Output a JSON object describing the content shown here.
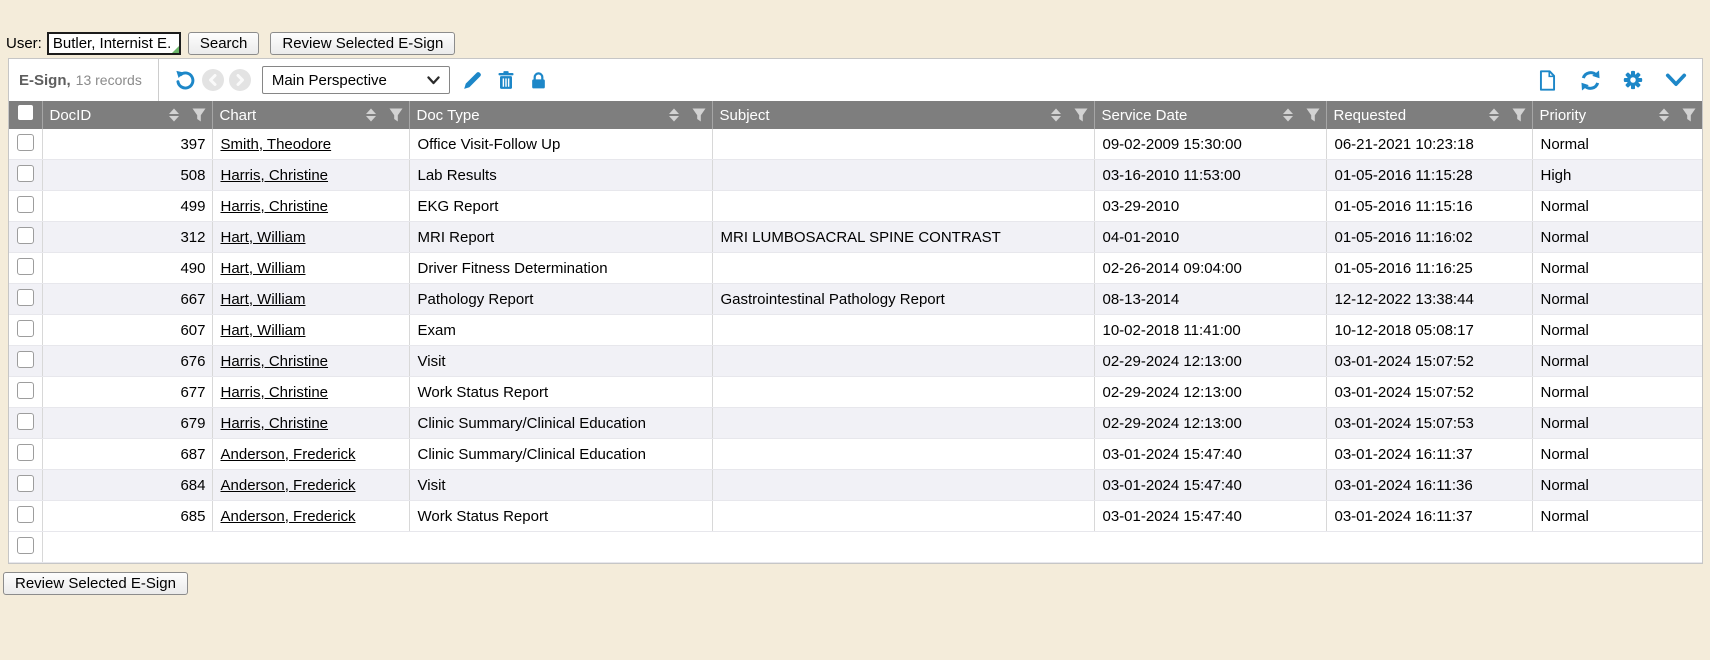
{
  "colors": {
    "accent_blue": "#1d87c8",
    "header_bg": "#7e7e7e",
    "alt_row_bg": "#f1f1f6",
    "page_bg": "#f4ecda"
  },
  "user_bar": {
    "label": "User:",
    "input_value": "Butler, Internist E.",
    "search_button": "Search",
    "review_button": "Review Selected E-Sign"
  },
  "toolbar": {
    "title": "E-Sign,",
    "record_count": "13 records",
    "perspective": "Main Perspective",
    "left_icons": [
      "undo-icon",
      "previous-icon",
      "next-icon",
      "edit-pencil-icon",
      "delete-trash-icon",
      "lock-icon"
    ],
    "right_icons": [
      "new-document-icon",
      "refresh-icon",
      "settings-gear-icon",
      "collapse-chevron-icon"
    ]
  },
  "table": {
    "columns": [
      {
        "key": "doc_id",
        "label": "DocID"
      },
      {
        "key": "chart",
        "label": "Chart"
      },
      {
        "key": "doc_type",
        "label": "Doc Type"
      },
      {
        "key": "subject",
        "label": "Subject"
      },
      {
        "key": "service_date",
        "label": "Service Date"
      },
      {
        "key": "requested",
        "label": "Requested"
      },
      {
        "key": "priority",
        "label": "Priority"
      }
    ],
    "rows": [
      {
        "doc_id": "397",
        "chart": "Smith, Theodore",
        "doc_type": "Office Visit-Follow Up",
        "subject": "",
        "service_date": "09-02-2009 15:30:00",
        "requested": "06-21-2021 10:23:18",
        "priority": "Normal"
      },
      {
        "doc_id": "508",
        "chart": "Harris, Christine",
        "doc_type": "Lab Results",
        "subject": "",
        "service_date": "03-16-2010 11:53:00",
        "requested": "01-05-2016 11:15:28",
        "priority": "High"
      },
      {
        "doc_id": "499",
        "chart": "Harris, Christine",
        "doc_type": "EKG Report",
        "subject": "",
        "service_date": "03-29-2010",
        "requested": "01-05-2016 11:15:16",
        "priority": "Normal"
      },
      {
        "doc_id": "312",
        "chart": "Hart, William",
        "doc_type": "MRI Report",
        "subject": "MRI LUMBOSACRAL SPINE CONTRAST",
        "service_date": "04-01-2010",
        "requested": "01-05-2016 11:16:02",
        "priority": "Normal"
      },
      {
        "doc_id": "490",
        "chart": "Hart, William",
        "doc_type": "Driver Fitness Determination",
        "subject": "",
        "service_date": "02-26-2014 09:04:00",
        "requested": "01-05-2016 11:16:25",
        "priority": "Normal"
      },
      {
        "doc_id": "667",
        "chart": "Hart, William",
        "doc_type": "Pathology Report",
        "subject": "Gastrointestinal Pathology Report",
        "service_date": "08-13-2014",
        "requested": "12-12-2022 13:38:44",
        "priority": "Normal"
      },
      {
        "doc_id": "607",
        "chart": "Hart, William",
        "doc_type": "Exam",
        "subject": "",
        "service_date": "10-02-2018 11:41:00",
        "requested": "10-12-2018 05:08:17",
        "priority": "Normal"
      },
      {
        "doc_id": "676",
        "chart": "Harris, Christine",
        "doc_type": "Visit",
        "subject": "",
        "service_date": "02-29-2024 12:13:00",
        "requested": "03-01-2024 15:07:52",
        "priority": "Normal"
      },
      {
        "doc_id": "677",
        "chart": "Harris, Christine",
        "doc_type": "Work Status Report",
        "subject": "",
        "service_date": "02-29-2024 12:13:00",
        "requested": "03-01-2024 15:07:52",
        "priority": "Normal"
      },
      {
        "doc_id": "679",
        "chart": "Harris, Christine",
        "doc_type": "Clinic Summary/Clinical Education",
        "subject": "",
        "service_date": "02-29-2024 12:13:00",
        "requested": "03-01-2024 15:07:53",
        "priority": "Normal"
      },
      {
        "doc_id": "687",
        "chart": "Anderson, Frederick",
        "doc_type": "Clinic Summary/Clinical Education",
        "subject": "",
        "service_date": "03-01-2024 15:47:40",
        "requested": "03-01-2024 16:11:37",
        "priority": "Normal"
      },
      {
        "doc_id": "684",
        "chart": "Anderson, Frederick",
        "doc_type": "Visit",
        "subject": "",
        "service_date": "03-01-2024 15:47:40",
        "requested": "03-01-2024 16:11:36",
        "priority": "Normal"
      },
      {
        "doc_id": "685",
        "chart": "Anderson, Frederick",
        "doc_type": "Work Status Report",
        "subject": "",
        "service_date": "03-01-2024 15:47:40",
        "requested": "03-01-2024 16:11:37",
        "priority": "Normal"
      }
    ]
  },
  "footer": {
    "review_button": "Review Selected E-Sign"
  }
}
